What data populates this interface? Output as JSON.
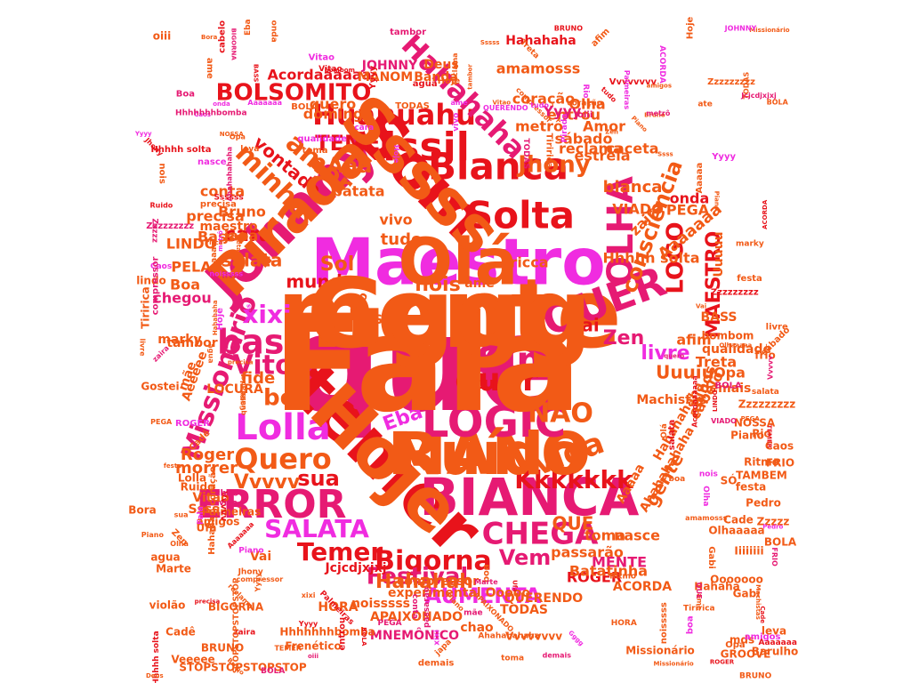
{
  "palette": {
    "red": "#e8131b",
    "orange": "#f25a16",
    "pink": "#e61a73",
    "magenta": "#f02ce0",
    "darkred": "#c9101a",
    "mid": "#ee3a2a"
  },
  "words": [
    {
      "text": "que",
      "color": "pink"
    },
    {
      "text": "mente",
      "color": "orange"
    },
    {
      "text": "temer",
      "color": "red"
    },
    {
      "text": "Maestro",
      "color": "magenta"
    },
    {
      "text": "Som",
      "color": "red"
    },
    {
      "text": "Johnny",
      "color": "pink"
    },
    {
      "text": "MANO",
      "color": "orange"
    },
    {
      "text": "BIANCA",
      "color": "pink"
    },
    {
      "text": "LOGIC",
      "color": "pink"
    },
    {
      "text": "Bianca",
      "color": "red"
    },
    {
      "text": "Kissil",
      "color": "red"
    },
    {
      "text": "Solta",
      "color": "red"
    },
    {
      "text": "QUER",
      "color": "pink"
    },
    {
      "text": "OLHA",
      "color": "pink"
    },
    {
      "text": "ERROR",
      "color": "pink"
    },
    {
      "text": "Lolla",
      "color": "magenta"
    },
    {
      "text": "Sim",
      "color": "pink"
    },
    {
      "text": "Huahuahu",
      "color": "red"
    },
    {
      "text": "Hahahaha",
      "color": "pink"
    },
    {
      "text": "BOLSOMITO",
      "color": "red"
    },
    {
      "text": "bass",
      "color": "pink"
    },
    {
      "text": "Vitor",
      "color": "pink"
    },
    {
      "text": "CHEGA",
      "color": "pink"
    },
    {
      "text": "SALATA",
      "color": "magenta"
    },
    {
      "text": "Bigorna",
      "color": "red"
    },
    {
      "text": "Quero",
      "color": "orange"
    },
    {
      "text": "vida",
      "color": "orange"
    },
    {
      "text": "Missionario",
      "color": "pink"
    },
    {
      "text": "quer",
      "color": "red"
    },
    {
      "text": "NAO",
      "color": "orange"
    },
    {
      "text": "Festival",
      "color": "pink"
    },
    {
      "text": "Temer",
      "color": "red"
    },
    {
      "text": "Kkkkkkk",
      "color": "red"
    },
    {
      "text": "AUMENTA",
      "color": "magenta"
    },
    {
      "text": "Hahahah",
      "color": "orange"
    },
    {
      "text": "MAESTRO",
      "color": "red"
    },
    {
      "text": "LOGO",
      "color": "red"
    },
    {
      "text": "consciência",
      "color": "orange"
    },
    {
      "text": "amor",
      "color": "orange"
    },
    {
      "text": "minha",
      "color": "orange"
    },
    {
      "text": "TEMER",
      "color": "red"
    },
    {
      "text": "Jhony",
      "color": "orange"
    },
    {
      "text": "xixi",
      "color": "magenta"
    },
    {
      "text": "boa",
      "color": "orange"
    },
    {
      "text": "sua",
      "color": "red"
    },
    {
      "text": "Vvvvv",
      "color": "orange"
    },
    {
      "text": "Aaa",
      "color": "orange"
    },
    {
      "text": "Roger",
      "color": "orange"
    },
    {
      "text": "morrer",
      "color": "orange"
    },
    {
      "text": "nois",
      "color": "orange"
    },
    {
      "text": "Sol",
      "color": "orange"
    },
    {
      "text": "mundo",
      "color": "red"
    },
    {
      "text": "salata",
      "color": "orange"
    },
    {
      "text": "cara",
      "color": "red"
    },
    {
      "text": "livre",
      "color": "magenta"
    },
    {
      "text": "Zen",
      "color": "pink"
    },
    {
      "text": "vai",
      "color": "red"
    },
    {
      "text": "Uuuiu",
      "color": "orange"
    },
    {
      "text": "Vem",
      "color": "pink"
    },
    {
      "text": "QUE",
      "color": "orange"
    },
    {
      "text": "nasce",
      "color": "orange"
    },
    {
      "text": "gente",
      "color": "orange"
    },
    {
      "text": "Eba",
      "color": "magenta"
    },
    {
      "text": "ate",
      "color": "pink"
    },
    {
      "text": "fide",
      "color": "orange"
    },
    {
      "text": "Treta",
      "color": "orange"
    },
    {
      "text": "Opa",
      "color": "orange"
    },
    {
      "text": "afim",
      "color": "orange"
    },
    {
      "text": "cabelo",
      "color": "orange"
    },
    {
      "text": "alunos",
      "color": "orange"
    },
    {
      "text": "jcu",
      "color": "red"
    },
    {
      "text": "bianca",
      "color": "orange"
    },
    {
      "text": "tudo",
      "color": "orange"
    },
    {
      "text": "vivo",
      "color": "orange"
    },
    {
      "text": "Bruno",
      "color": "orange"
    },
    {
      "text": "precisa",
      "color": "orange"
    },
    {
      "text": "conta",
      "color": "orange"
    },
    {
      "text": "batata",
      "color": "orange"
    },
    {
      "text": "vontade",
      "color": "red"
    },
    {
      "text": "metrô",
      "color": "orange"
    },
    {
      "text": "entrou",
      "color": "orange"
    },
    {
      "text": "coração",
      "color": "orange"
    },
    {
      "text": "Olha",
      "color": "orange"
    },
    {
      "text": "Yyyy",
      "color": "pink"
    },
    {
      "text": "sábado",
      "color": "orange"
    },
    {
      "text": "reclama",
      "color": "orange"
    },
    {
      "text": "estrela",
      "color": "orange"
    },
    {
      "text": "onda",
      "color": "red"
    },
    {
      "text": "PEGA",
      "color": "orange"
    },
    {
      "text": "VIADO",
      "color": "orange"
    },
    {
      "text": "Hhhhh solta",
      "color": "orange"
    },
    {
      "text": "zaira",
      "color": "orange"
    },
    {
      "text": "ricca",
      "color": "orange"
    },
    {
      "text": "Aaaaaaa",
      "color": "orange"
    },
    {
      "text": "Acordaaaaaa",
      "color": "red"
    },
    {
      "text": "Hahahaha",
      "color": "red"
    },
    {
      "text": "amamosss",
      "color": "orange"
    },
    {
      "text": "domingo",
      "color": "orange"
    },
    {
      "text": "quero",
      "color": "orange"
    },
    {
      "text": "Amor",
      "color": "orange"
    },
    {
      "text": "caceta",
      "color": "orange"
    },
    {
      "text": "JOHNNY",
      "color": "pink"
    },
    {
      "text": "Deus",
      "color": "orange"
    },
    {
      "text": "MANOM",
      "color": "orange"
    },
    {
      "text": "Banda",
      "color": "orange"
    },
    {
      "text": "Bass",
      "color": "orange"
    },
    {
      "text": "japa",
      "color": "orange"
    },
    {
      "text": "LINDO",
      "color": "orange"
    },
    {
      "text": "PELA",
      "color": "orange"
    },
    {
      "text": "Boa",
      "color": "orange"
    },
    {
      "text": "chegou",
      "color": "pink"
    },
    {
      "text": "maestro",
      "color": "orange"
    },
    {
      "text": "Aeeeee",
      "color": "orange"
    },
    {
      "text": "LOCURA",
      "color": "orange"
    },
    {
      "text": "mãe",
      "color": "orange"
    },
    {
      "text": "marky",
      "color": "orange"
    },
    {
      "text": "tambor",
      "color": "orange"
    },
    {
      "text": "Ssss",
      "color": "orange"
    },
    {
      "text": "Vitao",
      "color": "orange"
    },
    {
      "text": "toma",
      "color": "orange"
    },
    {
      "text": "passarão",
      "color": "orange"
    },
    {
      "text": "MENTE",
      "color": "pink"
    },
    {
      "text": "ROGER",
      "color": "red"
    },
    {
      "text": "Batatinha",
      "color": "orange"
    },
    {
      "text": "ACORDA",
      "color": "orange"
    },
    {
      "text": "TODAS",
      "color": "orange"
    },
    {
      "text": "APAIXONADO",
      "color": "orange"
    },
    {
      "text": "experimental Ooooo",
      "color": "orange"
    },
    {
      "text": "MNEMÔNICO",
      "color": "pink"
    },
    {
      "text": "QUERENDO",
      "color": "orange"
    },
    {
      "text": "Jcjcdjxjxj",
      "color": "red"
    },
    {
      "text": "compressor",
      "color": "orange"
    },
    {
      "text": "HORA",
      "color": "orange"
    },
    {
      "text": "noisssss",
      "color": "orange"
    },
    {
      "text": "chao",
      "color": "orange"
    },
    {
      "text": "Ssssss",
      "color": "orange"
    },
    {
      "text": "ame",
      "color": "orange"
    },
    {
      "text": "Iyvo",
      "color": "orange"
    },
    {
      "text": "Vai",
      "color": "orange"
    },
    {
      "text": "BIGORNA",
      "color": "orange"
    },
    {
      "text": "Veeeee",
      "color": "orange"
    },
    {
      "text": "STOPSTOPSTOPSTOP",
      "color": "orange"
    },
    {
      "text": "Frenético",
      "color": "orange"
    },
    {
      "text": "Hhhhhhhbomba",
      "color": "orange"
    },
    {
      "text": "Hahahahaha",
      "color": "orange"
    },
    {
      "text": "Ahahahahaha",
      "color": "orange"
    },
    {
      "text": "Aaaaa",
      "color": "orange"
    },
    {
      "text": "Machistas",
      "color": "orange"
    },
    {
      "text": "qualidade",
      "color": "orange"
    },
    {
      "text": "demais",
      "color": "orange"
    },
    {
      "text": "BASS",
      "color": "orange"
    },
    {
      "text": "Uuuuu",
      "color": "orange"
    },
    {
      "text": "Vvvvvvvv",
      "color": "orange"
    },
    {
      "text": "Missionário",
      "color": "orange"
    },
    {
      "text": "Olhaaaaa",
      "color": "orange"
    },
    {
      "text": "Ooooooo",
      "color": "orange"
    },
    {
      "text": "Iiiiiiii",
      "color": "orange"
    },
    {
      "text": "Hahaha",
      "color": "orange"
    },
    {
      "text": "oiii",
      "color": "orange"
    },
    {
      "text": "mds",
      "color": "orange"
    },
    {
      "text": "lindo",
      "color": "orange"
    },
    {
      "text": "Bora",
      "color": "orange"
    },
    {
      "text": "Gostei",
      "color": "orange"
    },
    {
      "text": "Tiririca",
      "color": "orange"
    },
    {
      "text": "Cade",
      "color": "orange"
    },
    {
      "text": "Zzzzzzzzz",
      "color": "orange"
    },
    {
      "text": "BOLA",
      "color": "orange"
    },
    {
      "text": "Piano",
      "color": "orange"
    },
    {
      "text": "Rio",
      "color": "orange"
    },
    {
      "text": "NOSSA",
      "color": "orange"
    },
    {
      "text": "Ritmo",
      "color": "orange"
    },
    {
      "text": "FRIO",
      "color": "orange"
    },
    {
      "text": "TAMBEM",
      "color": "orange"
    },
    {
      "text": "Pedro",
      "color": "orange"
    },
    {
      "text": "SÓ",
      "color": "orange"
    },
    {
      "text": "Caos",
      "color": "orange"
    },
    {
      "text": "Gabi",
      "color": "orange"
    },
    {
      "text": "Barulho",
      "color": "orange"
    },
    {
      "text": "amigos",
      "color": "orange"
    },
    {
      "text": "agua",
      "color": "orange"
    },
    {
      "text": "frio",
      "color": "orange"
    },
    {
      "text": "bombom",
      "color": "orange"
    },
    {
      "text": "festa",
      "color": "orange"
    },
    {
      "text": "Ruido",
      "color": "orange"
    },
    {
      "text": "Lolla",
      "color": "orange"
    },
    {
      "text": "violão",
      "color": "orange"
    },
    {
      "text": "Marte",
      "color": "orange"
    },
    {
      "text": "Zzzzz",
      "color": "orange"
    },
    {
      "text": "leva",
      "color": "orange"
    },
    {
      "text": "GROOVE",
      "color": "orange"
    },
    {
      "text": "BRUNO",
      "color": "orange"
    },
    {
      "text": "Cadê",
      "color": "orange"
    },
    {
      "text": "Palmeiras",
      "color": "orange"
    },
    {
      "text": "Ufa",
      "color": "orange"
    },
    {
      "text": "Fala",
      "color": "orange"
    },
    {
      "text": "Gggg",
      "color": "orange"
    },
    {
      "text": "Hoje",
      "color": "orange"
    },
    {
      "text": "Olá",
      "color": "orange"
    },
    {
      "text": "Sssss",
      "color": "orange"
    },
    {
      "text": "Pirada",
      "color": "orange"
    },
    {
      "text": "Ruído",
      "color": "orange"
    }
  ]
}
